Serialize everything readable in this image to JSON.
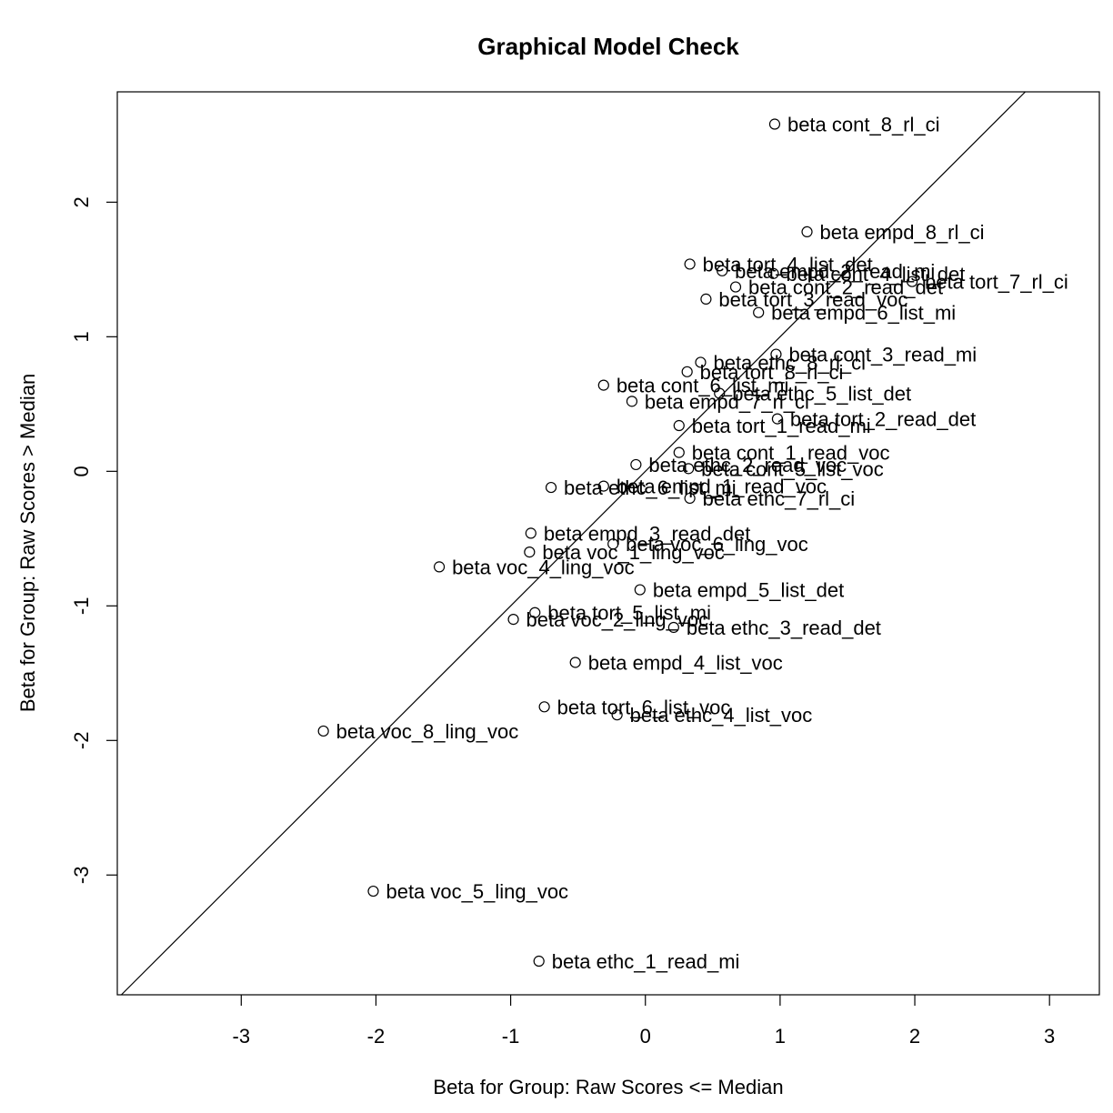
{
  "chart_data": {
    "type": "scatter",
    "title": "Graphical Model Check",
    "xlabel": "Beta for Group: Raw Scores <= Median",
    "ylabel": "Beta for Group: Raw Scores > Median",
    "xlim": [
      -3.92,
      3.37
    ],
    "ylim": [
      -3.89,
      2.82
    ],
    "xticks": [
      -3,
      -2,
      -1,
      0,
      1,
      2,
      3
    ],
    "yticks": [
      -3,
      -2,
      -1,
      0,
      1,
      2
    ],
    "grid": false,
    "reference_line": "y = x",
    "points": [
      {
        "label": "beta cont_8_rl_ci",
        "x": 0.96,
        "y": 2.58
      },
      {
        "label": "beta empd_8_rl_ci",
        "x": 1.2,
        "y": 1.78
      },
      {
        "label": "beta tort_4_list_det",
        "x": 0.33,
        "y": 1.54
      },
      {
        "label": "beta empd_2_read_mi",
        "x": 0.57,
        "y": 1.49
      },
      {
        "label": "beta cont_4_list_det",
        "x": 0.95,
        "y": 1.47
      },
      {
        "label": "beta tort_7_rl_ci",
        "x": 1.98,
        "y": 1.41
      },
      {
        "label": "beta cont_2_read_det",
        "x": 0.67,
        "y": 1.37
      },
      {
        "label": "beta tort_3_read_voc",
        "x": 0.45,
        "y": 1.28
      },
      {
        "label": "beta empd_6_list_mi",
        "x": 0.84,
        "y": 1.18
      },
      {
        "label": "beta cont_3_read_mi",
        "x": 0.97,
        "y": 0.87
      },
      {
        "label": "beta ethc_8_rl_ci",
        "x": 0.41,
        "y": 0.81
      },
      {
        "label": "beta tort_8_rl_ci",
        "x": 0.31,
        "y": 0.74
      },
      {
        "label": "beta cont_6_list_mi",
        "x": -0.31,
        "y": 0.64
      },
      {
        "label": "beta ethc_5_list_det",
        "x": 0.55,
        "y": 0.58
      },
      {
        "label": "beta empd_7_rl_ci",
        "x": -0.1,
        "y": 0.52
      },
      {
        "label": "beta tort_2_read_det",
        "x": 0.98,
        "y": 0.39
      },
      {
        "label": "beta tort_1_read_mi",
        "x": 0.25,
        "y": 0.34
      },
      {
        "label": "beta cont_1_read_voc",
        "x": 0.25,
        "y": 0.14
      },
      {
        "label": "beta ethc_2_read_voc",
        "x": -0.07,
        "y": 0.05
      },
      {
        "label": "beta cont_5_list_voc",
        "x": 0.32,
        "y": 0.02
      },
      {
        "label": "beta empd_1_read_voc",
        "x": -0.31,
        "y": -0.11
      },
      {
        "label": "beta ethc_6_list_mi",
        "x": -0.7,
        "y": -0.12
      },
      {
        "label": "beta ethc_7_rl_ci",
        "x": 0.33,
        "y": -0.2
      },
      {
        "label": "beta empd_3_read_det",
        "x": -0.85,
        "y": -0.46
      },
      {
        "label": "beta voc_6_ling_voc",
        "x": -0.24,
        "y": -0.54
      },
      {
        "label": "beta voc_1_ling_voc",
        "x": -0.86,
        "y": -0.6
      },
      {
        "label": "beta voc_4_ling_voc",
        "x": -1.53,
        "y": -0.71
      },
      {
        "label": "beta empd_5_list_det",
        "x": -0.04,
        "y": -0.88
      },
      {
        "label": "beta tort_5_list_mi",
        "x": -0.82,
        "y": -1.05
      },
      {
        "label": "beta voc_2_ling_voc",
        "x": -0.98,
        "y": -1.1
      },
      {
        "label": "beta ethc_3_read_det",
        "x": 0.21,
        "y": -1.16
      },
      {
        "label": "beta empd_4_list_voc",
        "x": -0.52,
        "y": -1.42
      },
      {
        "label": "beta tort_6_list_voc",
        "x": -0.75,
        "y": -1.75
      },
      {
        "label": "beta ethc_4_list_voc",
        "x": -0.21,
        "y": -1.81
      },
      {
        "label": "beta voc_8_ling_voc",
        "x": -2.39,
        "y": -1.93
      },
      {
        "label": "beta voc_5_ling_voc",
        "x": -2.02,
        "y": -3.12
      },
      {
        "label": "beta ethc_1_read_mi",
        "x": -0.79,
        "y": -3.64
      }
    ]
  }
}
